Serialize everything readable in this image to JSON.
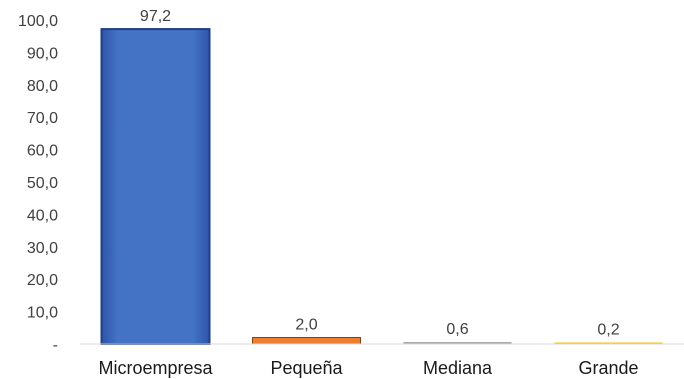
{
  "chart_data": {
    "type": "bar",
    "categories": [
      "Microempresa",
      "Pequeña",
      "Mediana",
      "Grande"
    ],
    "values": [
      97.2,
      2.0,
      0.6,
      0.2
    ],
    "value_labels": [
      "97,2",
      "2,0",
      "0,6",
      "0,2"
    ],
    "yticks": [
      "-",
      "10,0",
      "20,0",
      "30,0",
      "40,0",
      "50,0",
      "60,0",
      "70,0",
      "80,0",
      "90,0",
      "100,0"
    ],
    "ylim": [
      0,
      100
    ],
    "grid": false,
    "colors": [
      "#4472C4",
      "#ED7D31",
      "#A5A5A5",
      "#FFC000"
    ],
    "title": "",
    "xlabel": "",
    "ylabel": ""
  }
}
